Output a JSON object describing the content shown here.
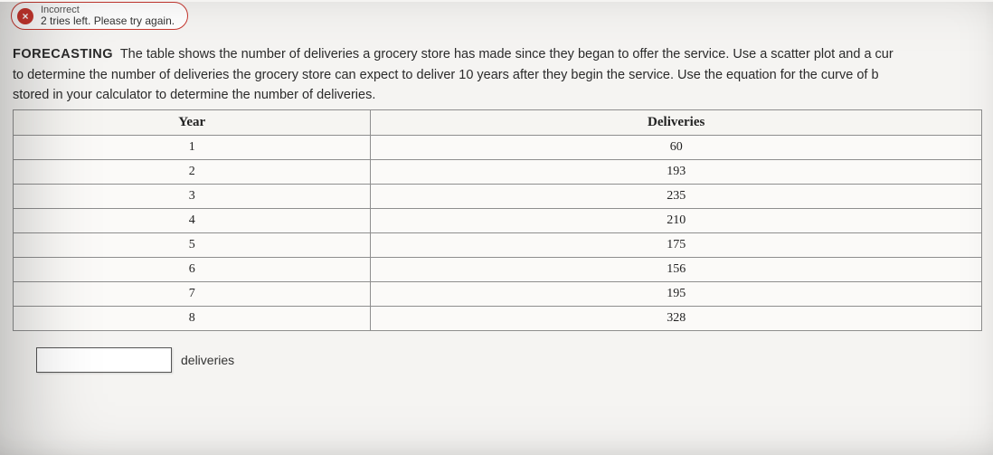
{
  "badge": {
    "icon_label": "×",
    "top_text": "Incorrect",
    "bottom_text": "2 tries left. Please try again."
  },
  "problem": {
    "heading": "FORECASTING",
    "line1": "The table shows the number of deliveries a grocery store has made since they began to offer the service. Use a scatter plot and a cur",
    "line2": "to determine the number of deliveries the grocery store can expect to deliver 10 years after they begin the service. Use the equation for the curve of b",
    "line3": "stored in your calculator to determine the number of deliveries."
  },
  "table": {
    "columns": [
      "Year",
      "Deliveries"
    ],
    "rows": [
      [
        "1",
        "60"
      ],
      [
        "2",
        "193"
      ],
      [
        "3",
        "235"
      ],
      [
        "4",
        "210"
      ],
      [
        "5",
        "175"
      ],
      [
        "6",
        "156"
      ],
      [
        "7",
        "195"
      ],
      [
        "8",
        "328"
      ]
    ]
  },
  "answer": {
    "unit_label": "deliveries"
  }
}
